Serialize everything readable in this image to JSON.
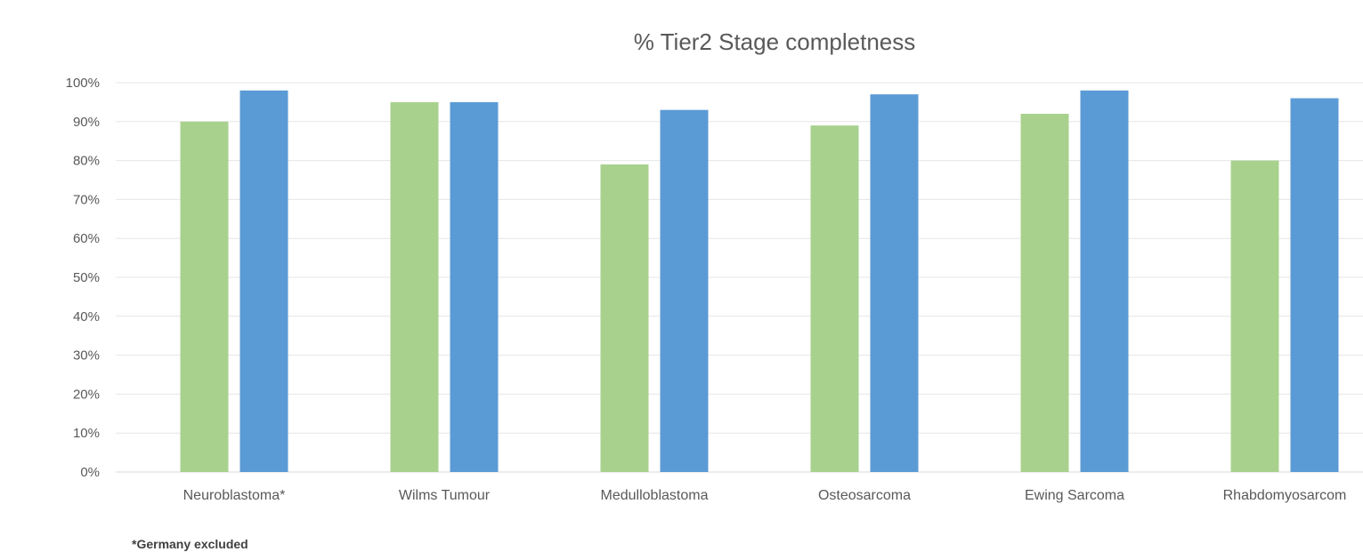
{
  "chart_data": {
    "type": "bar",
    "title": "% Tier2 Stage completness",
    "xlabel": "",
    "ylabel": "",
    "categories": [
      "Neuroblastoma*",
      "Wilms Tumour",
      "Medulloblastoma",
      "Osteosarcoma",
      "Ewing Sarcoma",
      "Rhabdomyosarcom"
    ],
    "series": [
      {
        "values": [
          90,
          95,
          79,
          89,
          92,
          80
        ],
        "color": "#A9D18E"
      },
      {
        "values": [
          98,
          95,
          93,
          97,
          98,
          96
        ],
        "color": "#5B9BD5"
      }
    ],
    "ylim": [
      0,
      100
    ],
    "yticks": [
      "0%",
      "10%",
      "20%",
      "30%",
      "40%",
      "50%",
      "60%",
      "70%",
      "80%",
      "90%",
      "100%"
    ],
    "grid": true,
    "legend": "none"
  },
  "footnote": "*Germany excluded"
}
